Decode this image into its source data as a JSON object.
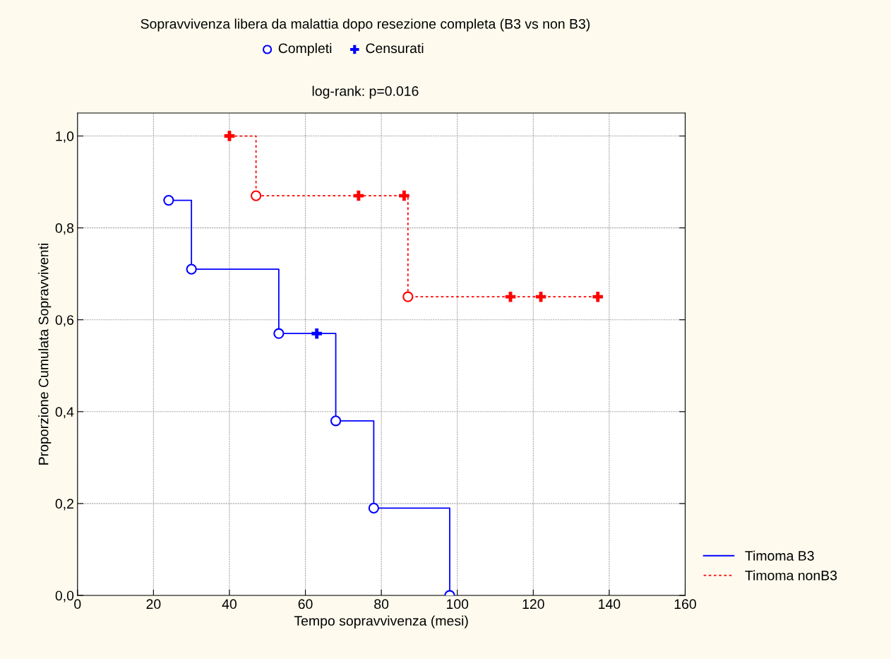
{
  "chart_data": {
    "type": "step",
    "title": "Sopravvivenza libera da malattia dopo resezione completa (B3 vs non B3)",
    "subtitle": "log-rank: p=0.016",
    "xlabel": "Tempo sopravvivenza (mesi)",
    "ylabel": "Proporzione Cumulata Sopravviventi",
    "xlim": [
      0,
      160
    ],
    "xticks": [
      0,
      20,
      40,
      60,
      80,
      100,
      120,
      140,
      160
    ],
    "ylim": [
      0,
      1.05
    ],
    "yticks": [
      {
        "value": 0,
        "label": "0,0"
      },
      {
        "value": 0.2,
        "label": "0,2"
      },
      {
        "value": 0.4,
        "label": "0,4"
      },
      {
        "value": 0.6,
        "label": "0,6"
      },
      {
        "value": 0.8,
        "label": "0,8"
      },
      {
        "value": 1.0,
        "label": "1,0"
      }
    ],
    "grid": true,
    "legend": "bottom right",
    "annotations": [
      "Completi",
      "Censurati"
    ],
    "series": [
      {
        "name": "Timoma B3",
        "color": "#0000ff",
        "line_style": "solid",
        "marker": "none",
        "x": [
          24,
          30,
          53,
          68,
          78,
          98
        ],
        "values": [
          0.86,
          0.71,
          0.57,
          0.38,
          0.19,
          0
        ]
      },
      {
        "name": "Timoma nonB3",
        "color": "#ff0000",
        "line_style": "dashed",
        "marker": "none",
        "x": [
          40,
          47,
          87,
          137
        ],
        "values": [
          1.0,
          0.87,
          0.65,
          0.65
        ]
      },
      {
        "type": "scatter",
        "color": "#0000ff",
        "marker": "circle",
        "x": [
          24,
          30,
          53,
          68,
          78,
          98,
          47,
          87
        ],
        "values": [
          0.86,
          0.71,
          0.57,
          0.38,
          0.19,
          0,
          0.87,
          0.65
        ],
        "colors": [
          "#0000ff",
          "#0000ff",
          "#0000ff",
          "#0000ff",
          "#0000ff",
          "#0000ff",
          "#ff0000",
          "#ff0000"
        ]
      },
      {
        "type": "scatter",
        "color": "#0000ff",
        "marker": "cross",
        "x": [
          63,
          40,
          74,
          86,
          114,
          122,
          137
        ],
        "values": [
          0.57,
          1.0,
          0.87,
          0.87,
          0.65,
          0.65,
          0.65
        ],
        "colors": [
          "#0000ff",
          "#ff0000",
          "#ff0000",
          "#ff0000",
          "#ff0000",
          "#ff0000",
          "#ff0000"
        ]
      }
    ]
  }
}
